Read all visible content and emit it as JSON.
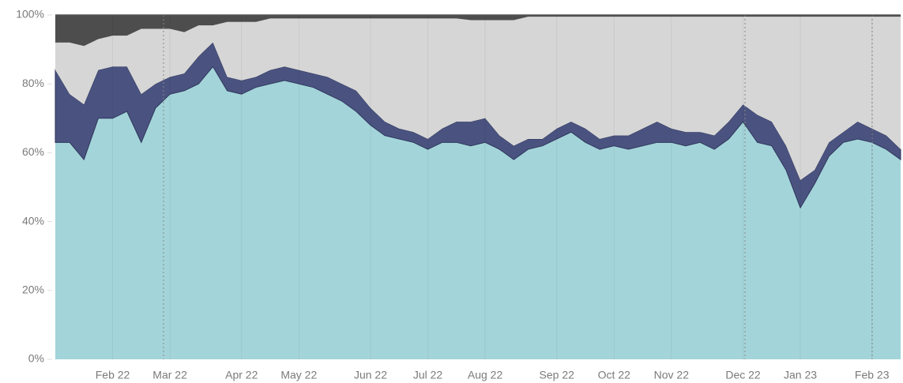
{
  "chart_data": {
    "type": "area",
    "stacked": true,
    "categories": [
      null,
      null,
      null,
      null,
      "Feb 22",
      null,
      null,
      null,
      "Mar 22",
      null,
      null,
      null,
      null,
      "Apr 22",
      null,
      null,
      null,
      "May 22",
      null,
      null,
      null,
      null,
      "Jun 22",
      null,
      null,
      null,
      "Jul 22",
      null,
      null,
      null,
      "Aug 22",
      null,
      null,
      null,
      null,
      "Sep 22",
      null,
      null,
      null,
      "Oct 22",
      null,
      null,
      null,
      "Nov 22",
      null,
      null,
      null,
      null,
      "Dec 22",
      null,
      null,
      null,
      "Jan 23",
      null,
      null,
      null,
      null,
      "Feb 23",
      null,
      null
    ],
    "series": [
      {
        "color": "#a3d4d9",
        "values": [
          63,
          63,
          58,
          70,
          70,
          72,
          63,
          73,
          77,
          78,
          80,
          85,
          78,
          77,
          79,
          80,
          81,
          80,
          79,
          77,
          75,
          72,
          68,
          65,
          64,
          63,
          61,
          63,
          63,
          62,
          63,
          61,
          58,
          61,
          62,
          64,
          66,
          63,
          61,
          62,
          61,
          62,
          63,
          63,
          62,
          63,
          61,
          64,
          69,
          63,
          62,
          55,
          44,
          51,
          59,
          63,
          64,
          63,
          61,
          58
        ]
      },
      {
        "color": "#4a5380",
        "values": [
          21,
          14,
          16,
          14,
          15,
          13,
          14,
          7,
          5,
          5,
          8,
          7,
          4,
          4,
          3,
          4,
          4,
          4,
          4,
          5,
          5,
          6,
          5,
          4,
          3,
          3,
          3,
          4,
          6,
          7,
          7,
          4,
          4,
          3,
          2,
          3,
          3,
          4,
          3,
          3,
          4,
          5,
          6,
          4,
          4,
          3,
          4,
          5,
          5,
          8,
          7,
          7,
          8,
          4,
          4,
          3,
          5,
          4,
          4,
          3
        ]
      },
      {
        "color": "#d6d6d6",
        "values": [
          8,
          15,
          17,
          9,
          9,
          9,
          19,
          16,
          14,
          12,
          9,
          5,
          16,
          17,
          16,
          15,
          14,
          15,
          16,
          17,
          19,
          21,
          26,
          30,
          32,
          33,
          35,
          32,
          30,
          29.5,
          28.5,
          33.5,
          36.5,
          35.5,
          35.5,
          32.5,
          30.5,
          32.5,
          35.5,
          34.5,
          34.5,
          32.5,
          30.5,
          32.5,
          33.5,
          33.5,
          34.5,
          30.5,
          25.5,
          28.5,
          30.5,
          37.5,
          47.5,
          44.5,
          36.5,
          33.5,
          30.5,
          32.5,
          34.5,
          38.5
        ]
      },
      {
        "color": "#4d4d4d",
        "values": [
          8,
          8,
          9,
          7,
          6,
          6,
          4,
          4,
          4,
          5,
          3,
          3,
          2,
          2,
          2,
          1,
          1,
          1,
          1,
          1,
          1,
          1,
          1,
          1,
          1,
          1,
          1,
          1,
          1,
          1.5,
          1.5,
          1.5,
          1.5,
          0.5,
          0.5,
          0.5,
          0.5,
          0.5,
          0.5,
          0.5,
          0.5,
          0.5,
          0.5,
          0.5,
          0.5,
          0.5,
          0.5,
          0.5,
          0.5,
          0.5,
          0.5,
          0.5,
          0.5,
          0.5,
          0.5,
          0.5,
          0.5,
          0.5,
          0.5,
          0.5
        ]
      }
    ],
    "ylim": [
      0,
      100
    ],
    "yticks": [
      {
        "value": 0,
        "label": "0%"
      },
      {
        "value": 20,
        "label": "20%"
      },
      {
        "value": 40,
        "label": "40%"
      },
      {
        "value": 60,
        "label": "60%"
      },
      {
        "value": 80,
        "label": "80%"
      },
      {
        "value": 100,
        "label": "100%"
      }
    ]
  }
}
